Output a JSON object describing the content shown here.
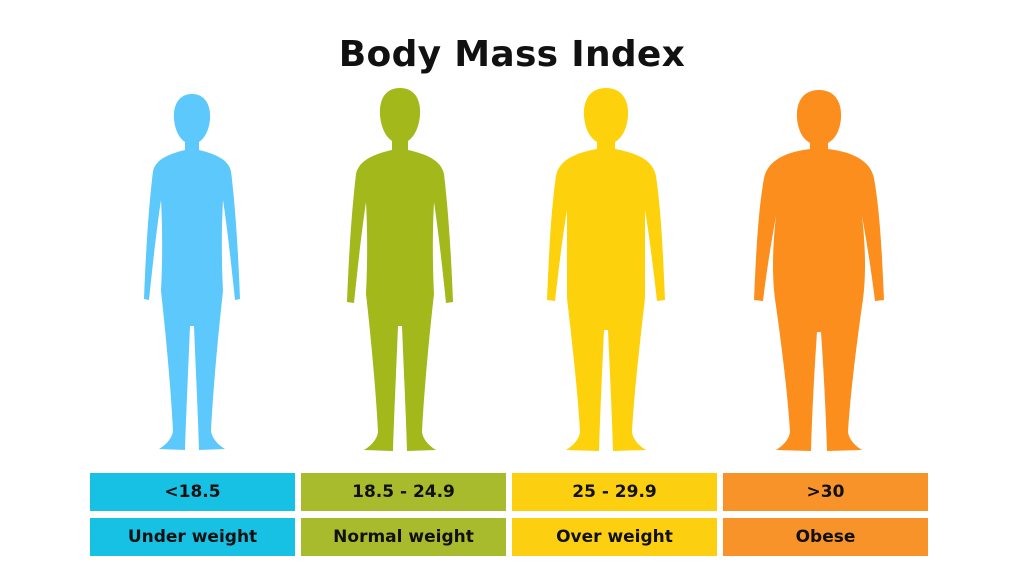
{
  "title": "Body Mass Index",
  "categories": [
    {
      "range": "<18.5",
      "label": "Under weight",
      "color": "#5cc8fb",
      "cell_color": "#17c1e4"
    },
    {
      "range": "18.5 - 24.9",
      "label": "Normal weight",
      "color": "#a2b81b",
      "cell_color": "#a7bb2d"
    },
    {
      "range": "25 - 29.9",
      "label": "Over weight",
      "color": "#fdd20c",
      "cell_color": "#fcd011"
    },
    {
      "range": ">30",
      "label": "Obese",
      "color": "#fb8e1c",
      "cell_color": "#f8932a"
    }
  ]
}
